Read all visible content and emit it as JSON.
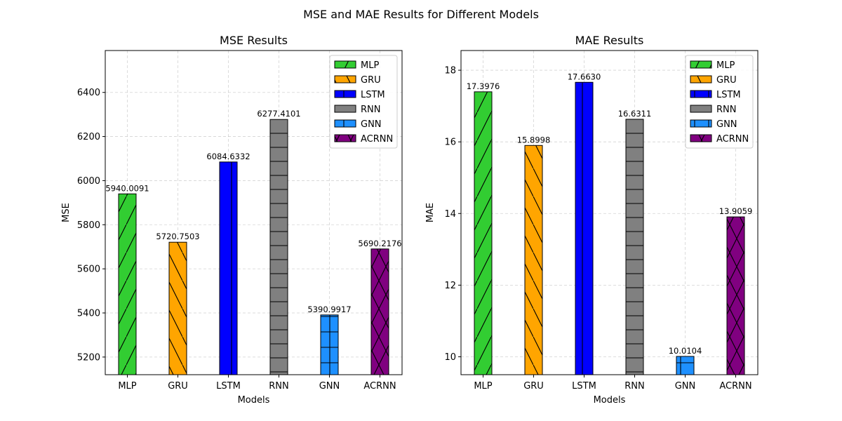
{
  "figure": {
    "suptitle": "MSE and MAE Results for Different Models"
  },
  "colors": {
    "MLP": "#32cd32",
    "GRU": "#ffa500",
    "LSTM": "#0000ff",
    "RNN": "#808080",
    "GNN": "#1e90ff",
    "ACRNN": "#800080"
  },
  "hatches": {
    "MLP": "forward-slash",
    "GRU": "back-slash",
    "LSTM": "vertical",
    "RNN": "horizontal",
    "GNN": "plus",
    "ACRNN": "cross"
  },
  "chart_data": [
    {
      "type": "bar",
      "title": "MSE Results",
      "xlabel": "Models",
      "ylabel": "MSE",
      "categories": [
        "MLP",
        "GRU",
        "LSTM",
        "RNN",
        "GNN",
        "ACRNN"
      ],
      "values": [
        5940.0091,
        5720.7503,
        6084.6332,
        6277.4101,
        5390.9917,
        5690.2176
      ],
      "value_labels": [
        "5940.0091",
        "5720.7503",
        "6084.6332",
        "6277.4101",
        "5390.9917",
        "5690.2176"
      ],
      "ylim": [
        5120,
        6590
      ],
      "yticks": [
        5200,
        5400,
        5600,
        5800,
        6000,
        6200,
        6400
      ],
      "grid": true,
      "legend": "top-right"
    },
    {
      "type": "bar",
      "title": "MAE Results",
      "xlabel": "Models",
      "ylabel": "MAE",
      "categories": [
        "MLP",
        "GRU",
        "LSTM",
        "RNN",
        "GNN",
        "ACRNN"
      ],
      "values": [
        17.3976,
        15.8998,
        17.663,
        16.6311,
        10.0104,
        13.9059
      ],
      "value_labels": [
        "17.3976",
        "15.8998",
        "17.6630",
        "16.6311",
        "10.0104",
        "13.9059"
      ],
      "ylim": [
        9.5,
        18.55
      ],
      "yticks": [
        10,
        12,
        14,
        16,
        18
      ],
      "grid": true,
      "legend": "top-right"
    }
  ]
}
